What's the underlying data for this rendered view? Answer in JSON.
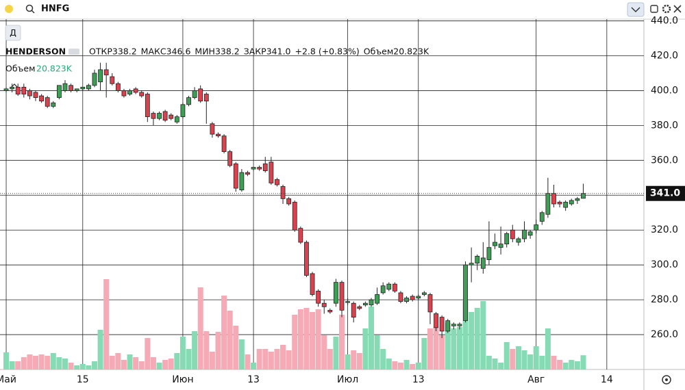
{
  "toolbar": {
    "search": "HNFG"
  },
  "interval_button": "Д",
  "chart_data": {
    "type": "candlestick",
    "symbol": "HENDERSON",
    "stats": [
      "ОТКР338.2",
      "МАКС346.6",
      "МИН338.2",
      "ЗАКР341.0",
      "+2.8 (+0.83%)",
      "Объем20.823K"
    ],
    "volume_title": "Объем",
    "volume_label": "20.823K",
    "up_color": "#3f9e55",
    "down_color": "#d9424f",
    "volume_up_color": "#86dbb5",
    "volume_down_color": "#f5aab5",
    "x": [
      0,
      1,
      2,
      3,
      4,
      5,
      6,
      7,
      8,
      9,
      10,
      11,
      12,
      13,
      14,
      15,
      16,
      17,
      18,
      19,
      20,
      21,
      22,
      23,
      24,
      25,
      26,
      27,
      28,
      29,
      30,
      31,
      32,
      33,
      34,
      35,
      36,
      37,
      38,
      39,
      40,
      41,
      42,
      43,
      44,
      45,
      46,
      47,
      48,
      49,
      50,
      51,
      52,
      53,
      54,
      55,
      56,
      57,
      58,
      59,
      60,
      61,
      62,
      63,
      64,
      65,
      66,
      67,
      68,
      69,
      70,
      71,
      72,
      73,
      74,
      75,
      76,
      77,
      78,
      79,
      80,
      81,
      82,
      83,
      84,
      85,
      86,
      87,
      88,
      89,
      90,
      91,
      92,
      93,
      94,
      95,
      96,
      97,
      98
    ],
    "open": [
      400,
      401,
      402,
      402,
      400,
      399,
      397,
      396,
      391,
      396,
      400,
      403,
      400,
      401,
      401,
      403,
      405,
      412,
      408,
      404,
      400,
      398,
      401,
      399,
      398,
      387,
      384,
      388,
      386,
      382,
      385,
      392,
      396,
      401,
      398,
      381,
      375,
      374,
      365,
      358,
      343,
      353,
      355,
      356,
      358,
      359,
      349,
      345,
      338,
      336,
      321,
      313,
      295,
      285,
      278,
      274,
      278,
      290,
      279,
      278,
      276,
      277,
      277,
      278,
      284,
      286,
      289,
      284,
      279,
      282,
      281,
      283,
      283,
      272,
      270,
      262,
      265,
      265,
      268,
      300,
      301,
      298,
      303,
      311,
      310,
      312,
      320,
      313,
      315,
      317,
      320,
      325,
      329,
      341,
      336,
      333,
      335,
      337,
      338.2
    ],
    "high": [
      402,
      404,
      404,
      404,
      401,
      400,
      398,
      397,
      394,
      403,
      406,
      404,
      401,
      402,
      404,
      412,
      416,
      416,
      410,
      405,
      401,
      401,
      402,
      400,
      399,
      388,
      388,
      389,
      387,
      386,
      393,
      397,
      402,
      403,
      399,
      382,
      376,
      375,
      366,
      359,
      355,
      354,
      356,
      357,
      362,
      362,
      350,
      346,
      339,
      337,
      322,
      314,
      296,
      286,
      280,
      275,
      292,
      291,
      281,
      279,
      277,
      279,
      281,
      287,
      290,
      290,
      290,
      285,
      282,
      283,
      283,
      285,
      284,
      273,
      271,
      269,
      267,
      267,
      302,
      310,
      306,
      313,
      325,
      318,
      322,
      319,
      323,
      316,
      325,
      320,
      326,
      331,
      350,
      346,
      337,
      337,
      338,
      339,
      346.6
    ],
    "low": [
      399,
      399,
      397,
      396,
      395,
      394,
      393,
      390,
      390,
      395,
      399,
      399,
      399,
      400,
      400,
      402,
      400,
      396,
      403,
      399,
      396,
      397,
      398,
      396,
      382,
      380,
      383,
      382,
      383,
      381,
      384,
      391,
      395,
      393,
      381,
      373,
      373,
      364,
      356,
      342,
      342,
      351,
      354,
      354,
      353,
      346,
      345,
      335,
      334,
      319,
      312,
      293,
      282,
      276,
      272,
      272,
      276,
      270,
      277,
      267,
      274,
      276,
      276,
      277,
      283,
      285,
      284,
      278,
      278,
      279,
      280,
      282,
      266,
      262,
      258,
      261,
      263,
      263,
      267,
      290,
      297,
      295,
      300,
      309,
      306,
      310,
      313,
      311,
      313,
      315,
      318,
      323,
      327,
      333,
      333,
      331,
      334,
      335,
      338.2
    ],
    "close": [
      401,
      402,
      398,
      398,
      397,
      396,
      394,
      391,
      393,
      403,
      404,
      400,
      401,
      402,
      403,
      410,
      412,
      409,
      404,
      400,
      397,
      400,
      399,
      397,
      385,
      384,
      387,
      383,
      384,
      385,
      392,
      396,
      400,
      394,
      394,
      375,
      374,
      365,
      357,
      344,
      353,
      352,
      356,
      355,
      354,
      347,
      346,
      338,
      335,
      320,
      313,
      294,
      283,
      278,
      276,
      273,
      290,
      274,
      279,
      270,
      275,
      278,
      280,
      283,
      288,
      289,
      285,
      279,
      281,
      280,
      282,
      284,
      273,
      264,
      262,
      268,
      266,
      266,
      300,
      301,
      305,
      304,
      310,
      313,
      312,
      318,
      315,
      315,
      320,
      319,
      323,
      330,
      341,
      335,
      335,
      336,
      337,
      338,
      341.0
    ],
    "volume": [
      25,
      12,
      12,
      18,
      22,
      20,
      22,
      20,
      24,
      18,
      16,
      10,
      6,
      8,
      6,
      12,
      58,
      132,
      20,
      24,
      14,
      22,
      18,
      12,
      46,
      18,
      10,
      14,
      16,
      24,
      48,
      30,
      56,
      120,
      56,
      26,
      55,
      108,
      86,
      64,
      44,
      22,
      10,
      30,
      30,
      26,
      30,
      36,
      28,
      80,
      88,
      90,
      84,
      88,
      50,
      30,
      48,
      80,
      22,
      28,
      24,
      60,
      92,
      50,
      30,
      16,
      12,
      10,
      14,
      8,
      10,
      46,
      60,
      62,
      50,
      68,
      60,
      62,
      100,
      84,
      90,
      100,
      20,
      16,
      10,
      40,
      30,
      34,
      28,
      22,
      34,
      20,
      60,
      20,
      14,
      10,
      14,
      12,
      20.823
    ],
    "xlim": [
      -1.05,
      108.3
    ],
    "xticks": [
      {
        "value": 0,
        "label": "Май"
      },
      {
        "value": 13,
        "label": "15"
      },
      {
        "value": 30,
        "label": "Июн"
      },
      {
        "value": 42,
        "label": "13"
      },
      {
        "value": 58,
        "label": "Июл"
      },
      {
        "value": 70,
        "label": "13"
      },
      {
        "value": 90,
        "label": "Авг"
      },
      {
        "value": 102,
        "label": "14"
      }
    ],
    "ylim": [
      240,
      441
    ],
    "yticks": [
      {
        "value": 260,
        "label": "260.0"
      },
      {
        "value": 280,
        "label": "280.0"
      },
      {
        "value": 300,
        "label": "300.0"
      },
      {
        "value": 320,
        "label": "320.0"
      },
      {
        "value": 340,
        "label": "340.0"
      },
      {
        "value": 360,
        "label": "360.0"
      },
      {
        "value": 380,
        "label": "380.0"
      },
      {
        "value": 400,
        "label": "400.0"
      },
      {
        "value": 420,
        "label": "420.0"
      },
      {
        "value": 440,
        "label": "440.0"
      }
    ],
    "price_line": {
      "value": 341.0,
      "label": "341.0"
    },
    "grid": true
  }
}
